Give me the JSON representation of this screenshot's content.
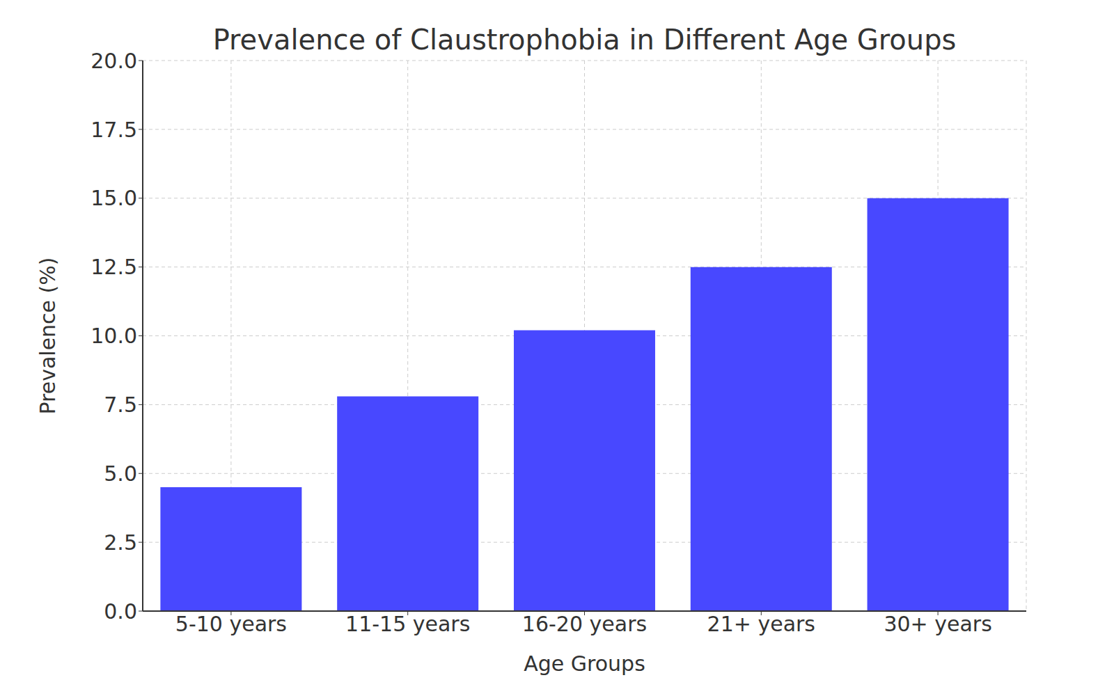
{
  "chart_data": {
    "type": "bar",
    "title": "Prevalence of Claustrophobia in Different Age Groups",
    "x_label": "Age Groups",
    "y_label": "Prevalence (%)",
    "categories": [
      "5-10 years",
      "11-15 years",
      "16-20 years",
      "21+ years",
      "30+ years"
    ],
    "values": [
      4.5,
      7.8,
      10.2,
      12.5,
      15.0
    ],
    "color": "#4848ff",
    "ylim": [
      0,
      20
    ],
    "yticks": [
      {
        "value": 0,
        "label": "0.0"
      },
      2.5,
      {
        "value": 5,
        "label": "5.0"
      },
      7.5,
      {
        "value": 10,
        "label": "10.0"
      },
      12.5,
      {
        "value": 15,
        "label": "15.0"
      },
      17.5,
      {
        "value": 20,
        "label": "20.0"
      }
    ],
    "grid": true
  }
}
